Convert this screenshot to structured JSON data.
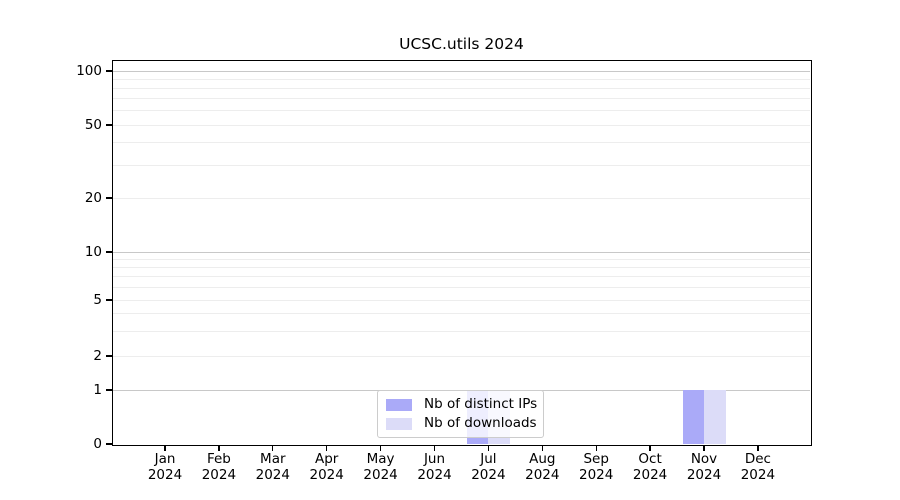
{
  "chart_data": {
    "type": "bar",
    "title": "UCSC.utils 2024",
    "categories": [
      "Jan 2024",
      "Feb 2024",
      "Mar 2024",
      "Apr 2024",
      "May 2024",
      "Jun 2024",
      "Jul 2024",
      "Aug 2024",
      "Sep 2024",
      "Oct 2024",
      "Nov 2024",
      "Dec 2024"
    ],
    "x_tick_months": [
      "Jan",
      "Feb",
      "Mar",
      "Apr",
      "May",
      "Jun",
      "Jul",
      "Aug",
      "Sep",
      "Oct",
      "Nov",
      "Dec"
    ],
    "x_tick_year": "2024",
    "series": [
      {
        "name": "Nb of distinct IPs",
        "color": "#aaaaf8",
        "values": [
          0,
          0,
          0,
          0,
          0,
          0,
          1,
          0,
          0,
          0,
          1,
          0
        ]
      },
      {
        "name": "Nb of downloads",
        "color": "#dcdcf8",
        "values": [
          0,
          0,
          0,
          0,
          0,
          0,
          1,
          0,
          0,
          0,
          1,
          0
        ]
      }
    ],
    "y_scale": "log-like (0,1,2,5,10,20,50,100)",
    "y_tick_labels": [
      "100",
      "50",
      "20",
      "10",
      "5",
      "2",
      "1",
      "0"
    ],
    "y_tick_values": [
      100,
      50,
      20,
      10,
      5,
      2,
      1,
      0
    ],
    "ylim": [
      0,
      100
    ],
    "grid": {
      "horizontal": true,
      "vertical": false,
      "major_values": [
        1,
        10,
        100
      ],
      "minor_values": [
        2,
        3,
        4,
        5,
        6,
        7,
        8,
        9,
        20,
        30,
        40,
        50,
        60,
        70,
        80,
        90
      ],
      "major_color": "#c8c8c8",
      "minor_color": "#ededed"
    },
    "legend_position": "lower center (inside axes, overlapping Jul bars)",
    "background_color": "#ffffff",
    "spine_color": "#000000"
  }
}
